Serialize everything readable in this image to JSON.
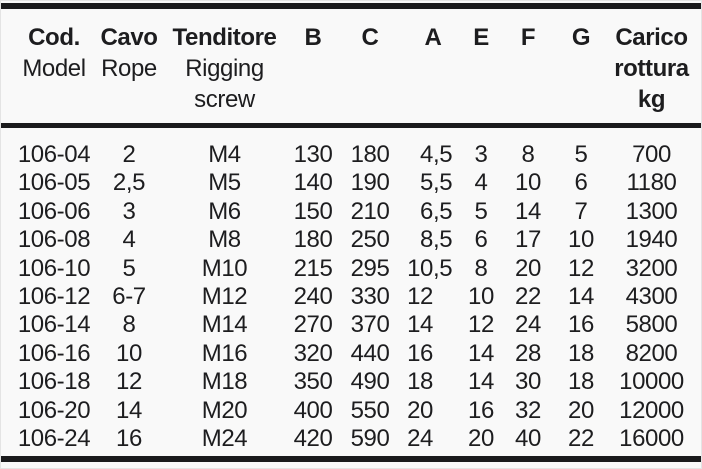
{
  "page": {
    "background_color": "#f9f9f9",
    "rule_color": "#1a1a1c",
    "text_color": "#1d1d1f"
  },
  "table": {
    "header": {
      "cod": {
        "title": "Cod.",
        "subtitle": "Model"
      },
      "cavo": {
        "title": "Cavo",
        "subtitle": "Rope"
      },
      "tenditore": {
        "title": "Tenditore",
        "subtitle1": "Rigging",
        "subtitle2": "screw"
      },
      "b": "B",
      "c": "C",
      "a": "A",
      "e": "E",
      "f": "F",
      "g": "G",
      "carico": {
        "line1": "Carico",
        "line2": "rottura",
        "line3": "kg"
      }
    },
    "columns": [
      "cod",
      "cavo",
      "tenditore",
      "b",
      "c",
      "a",
      "e",
      "f",
      "g",
      "carico"
    ],
    "rows": [
      [
        "106-04",
        "2",
        "M4",
        "130",
        "180",
        "4,5",
        "3",
        "8",
        "5",
        "700"
      ],
      [
        "106-05",
        "2,5",
        "M5",
        "140",
        "190",
        "5,5",
        "4",
        "10",
        "6",
        "1180"
      ],
      [
        "106-06",
        "3",
        "M6",
        "150",
        "210",
        "6,5",
        "5",
        "14",
        "7",
        "1300"
      ],
      [
        "106-08",
        "4",
        "M8",
        "180",
        "250",
        "8,5",
        "6",
        "17",
        "10",
        "1940"
      ],
      [
        "106-10",
        "5",
        "M10",
        "215",
        "295",
        "10,5",
        "8",
        "20",
        "12",
        "3200"
      ],
      [
        "106-12",
        "6-7",
        "M12",
        "240",
        "330",
        "12",
        "10",
        "22",
        "14",
        "4300"
      ],
      [
        "106-14",
        "8",
        "M14",
        "270",
        "370",
        "14",
        "12",
        "24",
        "16",
        "5800"
      ],
      [
        "106-16",
        "10",
        "M16",
        "320",
        "440",
        "16",
        "14",
        "28",
        "18",
        "8200"
      ],
      [
        "106-18",
        "12",
        "M18",
        "350",
        "490",
        "18",
        "14",
        "30",
        "18",
        "10000"
      ],
      [
        "106-20",
        "14",
        "M20",
        "400",
        "550",
        "20",
        "16",
        "32",
        "20",
        "12000"
      ],
      [
        "106-24",
        "16",
        "M24",
        "420",
        "590",
        "24",
        "20",
        "40",
        "22",
        "16000"
      ]
    ]
  }
}
